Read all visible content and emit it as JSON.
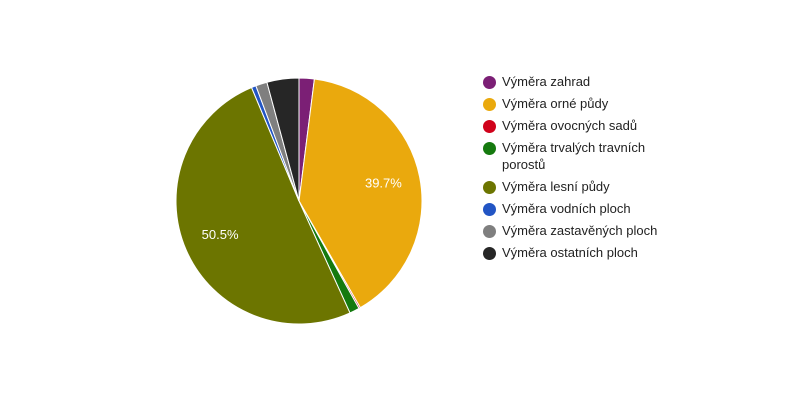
{
  "chart_data": {
    "type": "pie",
    "title": "",
    "legend_position": "right",
    "slices": [
      {
        "name": "Výměra zahrad",
        "value": 2.0,
        "color": "#7b1f75"
      },
      {
        "name": "Výměra orné půdy",
        "value": 39.7,
        "color": "#eaa90d",
        "label": "39.7%"
      },
      {
        "name": "Výměra ovocných sadů",
        "value": 0.2,
        "color": "#d0021b"
      },
      {
        "name": "Výměra trvalých travních porostů",
        "value": 1.3,
        "color": "#157a0f"
      },
      {
        "name": "Výměra lesní půdy",
        "value": 50.5,
        "color": "#6c7500",
        "label": "50.5%"
      },
      {
        "name": "Výměra vodních ploch",
        "value": 0.6,
        "color": "#2255c4"
      },
      {
        "name": "Výměra zastavěných ploch",
        "value": 1.5,
        "color": "#7f7f7f"
      },
      {
        "name": "Výměra ostatních ploch",
        "value": 4.2,
        "color": "#262626"
      }
    ]
  }
}
